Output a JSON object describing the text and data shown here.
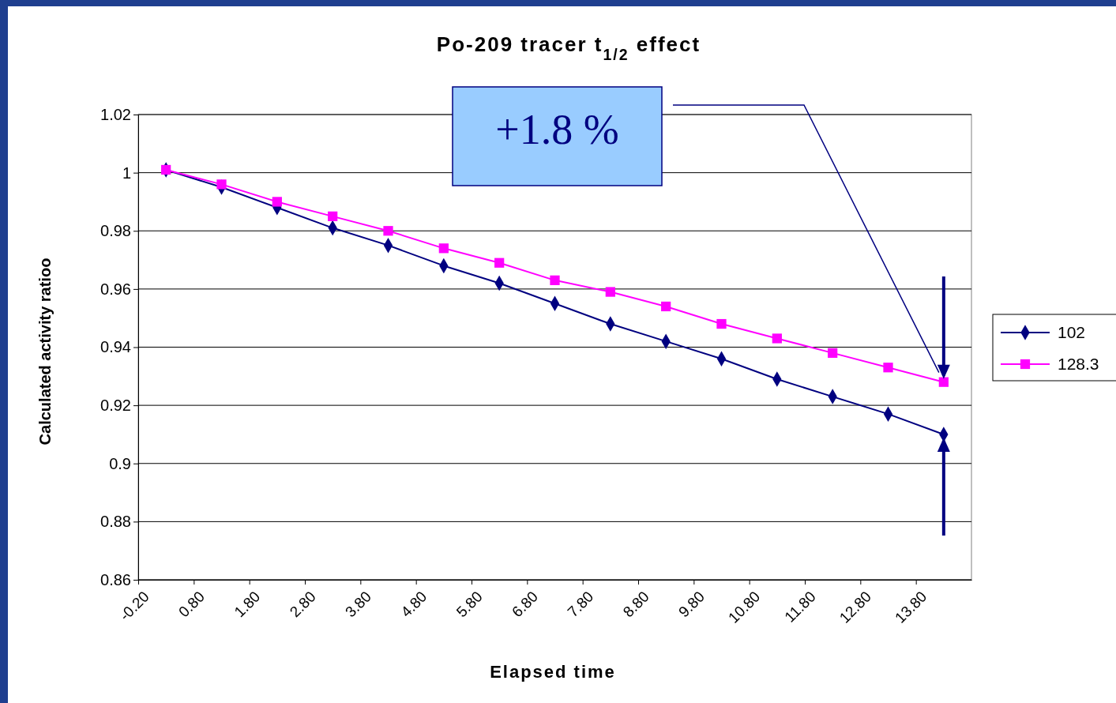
{
  "chart_data": {
    "type": "line",
    "title": "Po-209 tracer  t$_{1/2}$ effect",
    "xlabel": "Elapsed time",
    "ylabel": "Calculated activity ratioo",
    "x": [
      0.3,
      1.3,
      2.3,
      3.3,
      4.3,
      5.3,
      6.3,
      7.3,
      8.3,
      9.3,
      10.3,
      11.3,
      12.3,
      13.3,
      14.3
    ],
    "series": [
      {
        "name": "102",
        "color": "#000080",
        "marker": "diamond",
        "values": [
          1.001,
          0.995,
          0.988,
          0.981,
          0.975,
          0.968,
          0.962,
          0.955,
          0.948,
          0.942,
          0.936,
          0.929,
          0.923,
          0.917,
          0.91
        ]
      },
      {
        "name": "128.3",
        "color": "#ff00ff",
        "marker": "square",
        "values": [
          1.001,
          0.996,
          0.99,
          0.985,
          0.98,
          0.974,
          0.969,
          0.963,
          0.959,
          0.954,
          0.948,
          0.943,
          0.938,
          0.933,
          0.928
        ]
      }
    ],
    "xlim": [
      -0.2,
      14.8
    ],
    "xticks": [
      {
        "value": -0.2,
        "label": "-0.20"
      },
      {
        "value": 0.8,
        "label": "0.80"
      },
      {
        "value": 1.8,
        "label": "1.80"
      },
      {
        "value": 2.8,
        "label": "2.80"
      },
      {
        "value": 3.8,
        "label": "3.80"
      },
      {
        "value": 4.8,
        "label": "4.80"
      },
      {
        "value": 5.8,
        "label": "5.80"
      },
      {
        "value": 6.8,
        "label": "6.80"
      },
      {
        "value": 7.8,
        "label": "7.80"
      },
      {
        "value": 8.8,
        "label": "8.80"
      },
      {
        "value": 9.8,
        "label": "9.80"
      },
      {
        "value": 10.8,
        "label": "10.80"
      },
      {
        "value": 11.8,
        "label": "11.80"
      },
      {
        "value": 12.8,
        "label": "12.80"
      },
      {
        "value": 13.8,
        "label": "13.80"
      }
    ],
    "ylim": [
      0.86,
      1.02
    ],
    "yticks": [
      0.86,
      0.88,
      0.9,
      0.92,
      0.94,
      0.96,
      0.98,
      1,
      1.02
    ],
    "grid": "y",
    "legend": "right",
    "line_style": "solid",
    "annotations": [
      "+1.8 %"
    ]
  }
}
